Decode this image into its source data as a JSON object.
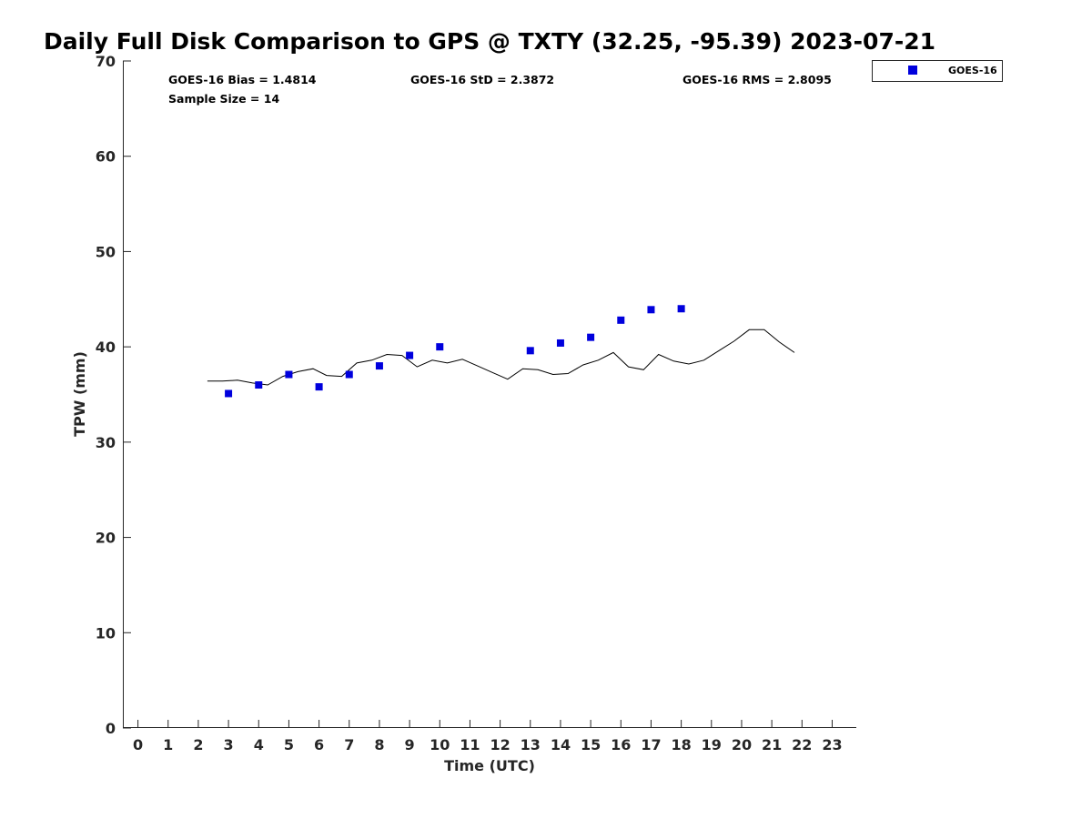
{
  "chart_data": {
    "type": "scatter",
    "title": "Daily Full Disk Comparison to GPS @ TXTY (32.25, -95.39) 2023-07-21",
    "xlabel": "Time (UTC)",
    "ylabel": "TPW (mm)",
    "xlim": [
      -0.5,
      23.8
    ],
    "ylim": [
      0,
      70
    ],
    "xticks": [
      0,
      1,
      2,
      3,
      4,
      5,
      6,
      7,
      8,
      9,
      10,
      11,
      12,
      13,
      14,
      15,
      16,
      17,
      18,
      19,
      20,
      21,
      22,
      23
    ],
    "yticks": [
      0,
      10,
      20,
      30,
      40,
      50,
      60,
      70
    ],
    "grid": false,
    "legend_position": "top-right",
    "stats": {
      "bias": "GOES-16 Bias = 1.4814",
      "std": "GOES-16 StD = 2.3872",
      "rms": "GOES-16 RMS = 2.8095",
      "sample": "Sample Size = 14"
    },
    "series": [
      {
        "name": "GOES-16",
        "kind": "scatter",
        "color": "#0000dd",
        "marker": "square",
        "x": [
          3,
          4,
          5,
          6,
          7,
          8,
          9,
          10,
          13,
          14,
          15,
          16,
          17,
          18
        ],
        "y": [
          35.1,
          36.0,
          37.1,
          35.8,
          37.1,
          38.0,
          39.1,
          40.0,
          39.6,
          40.4,
          41.0,
          42.8,
          43.9,
          44.0
        ]
      },
      {
        "kind": "line",
        "color": "#000000",
        "x": [
          2.3,
          2.8,
          3.3,
          3.8,
          4.3,
          4.8,
          5.3,
          5.8,
          6.25,
          6.75,
          7.25,
          7.75,
          8.25,
          8.75,
          9.25,
          9.75,
          10.25,
          10.75,
          11.25,
          11.75,
          12.25,
          12.75,
          13.25,
          13.75,
          14.25,
          14.75,
          15.25,
          15.75,
          16.25,
          16.75,
          17.25,
          17.75,
          18.25,
          18.75,
          19.25,
          19.75,
          20.25,
          20.75,
          21.25,
          21.75
        ],
        "y": [
          36.4,
          36.4,
          36.5,
          36.2,
          36.0,
          36.9,
          37.4,
          37.7,
          37.0,
          36.9,
          38.3,
          38.6,
          39.2,
          39.1,
          37.9,
          38.6,
          38.3,
          38.7,
          38.0,
          37.3,
          36.6,
          37.7,
          37.6,
          37.1,
          37.2,
          38.1,
          38.6,
          39.4,
          37.9,
          37.6,
          39.2,
          38.5,
          38.2,
          38.6,
          39.6,
          40.6,
          41.8,
          41.8,
          40.5,
          39.4
        ]
      }
    ]
  }
}
